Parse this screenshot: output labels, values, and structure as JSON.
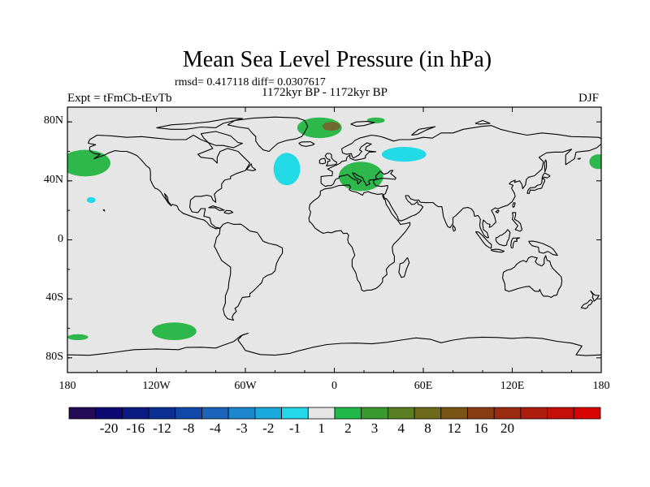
{
  "title": "Mean Sea Level Pressure (in hPa)",
  "stats": "rmsd= 0.417118 diff= 0.0307617",
  "period": "1172kyr BP - 1172kyr BP",
  "expt_label": "Expt = tFmCb-tEvTb",
  "season": "DJF",
  "map": {
    "lon_range": [
      -180,
      180
    ],
    "lat_range": [
      -90,
      90
    ],
    "y_ticks": [
      {
        "label": "80N",
        "lat": 80
      },
      {
        "label": "40N",
        "lat": 40
      },
      {
        "label": "0",
        "lat": 0
      },
      {
        "label": "40S",
        "lat": -40
      },
      {
        "label": "80S",
        "lat": -80
      }
    ],
    "x_ticks": [
      {
        "label": "180",
        "lon": -180
      },
      {
        "label": "120W",
        "lon": -120
      },
      {
        "label": "60W",
        "lon": -60
      },
      {
        "label": "0",
        "lon": 0
      },
      {
        "label": "60E",
        "lon": 60
      },
      {
        "label": "120E",
        "lon": 120
      },
      {
        "label": "180",
        "lon": 180
      }
    ],
    "colors": {
      "background": "#e6e6e6",
      "positive_light": "#2eb84b",
      "positive_dark": "#6f6a30",
      "negative_light": "#22d9e6",
      "coast": "#000000"
    },
    "anomalies": [
      {
        "name": "north-pacific-high",
        "lon": -168,
        "lat": 52,
        "rlon": 17,
        "rlat": 9,
        "sign": "positive"
      },
      {
        "name": "dateline-high-east",
        "lon": 178,
        "lat": 53,
        "rlon": 6,
        "rlat": 5,
        "sign": "positive"
      },
      {
        "name": "greenland-high",
        "lon": -10,
        "lat": 76,
        "rlon": 15,
        "rlat": 7,
        "sign": "positive"
      },
      {
        "name": "greenland-high-core",
        "lon": -2,
        "lat": 77,
        "rlon": 6,
        "rlat": 3,
        "sign": "positive_dark"
      },
      {
        "name": "arctic-high-small",
        "lon": 28,
        "lat": 81,
        "rlon": 6,
        "rlat": 2,
        "sign": "positive"
      },
      {
        "name": "europe-high",
        "lon": 18,
        "lat": 43,
        "rlon": 15,
        "rlat": 10,
        "sign": "positive"
      },
      {
        "name": "pacific-south-high",
        "lon": -108,
        "lat": -62,
        "rlon": 15,
        "rlat": 6,
        "sign": "positive"
      },
      {
        "name": "southwest-pacific-high",
        "lon": -173,
        "lat": -66,
        "rlon": 7,
        "rlat": 2,
        "sign": "positive"
      },
      {
        "name": "north-atlantic-low",
        "lon": -32,
        "lat": 48,
        "rlon": 9,
        "rlat": 11,
        "sign": "negative"
      },
      {
        "name": "russia-low",
        "lon": 47,
        "lat": 58,
        "rlon": 15,
        "rlat": 5,
        "sign": "negative"
      },
      {
        "name": "hawaii-low",
        "lon": -164,
        "lat": 27,
        "rlon": 3,
        "rlat": 2,
        "sign": "negative"
      }
    ]
  },
  "colorbar": {
    "colors": [
      "#220a55",
      "#0b0a73",
      "#0a1a82",
      "#0a2f93",
      "#0f48a8",
      "#1a64bb",
      "#1c86cf",
      "#19a9dc",
      "#24d7e9",
      "#e6e6e6",
      "#1fba49",
      "#3b9a2d",
      "#587f21",
      "#6f6a1b",
      "#7a5414",
      "#8a3d12",
      "#9a2b10",
      "#ad1c0c",
      "#c40e08",
      "#d80404"
    ],
    "labels": [
      "-20",
      "-16",
      "-12",
      "-8",
      "-4",
      "-3",
      "-2",
      "-1",
      "1",
      "2",
      "3",
      "4",
      "8",
      "12",
      "16",
      "20"
    ],
    "boundary_index": [
      1,
      2,
      3,
      4,
      5,
      6,
      7,
      8,
      9,
      10,
      11,
      12,
      13,
      14,
      15,
      16
    ]
  }
}
